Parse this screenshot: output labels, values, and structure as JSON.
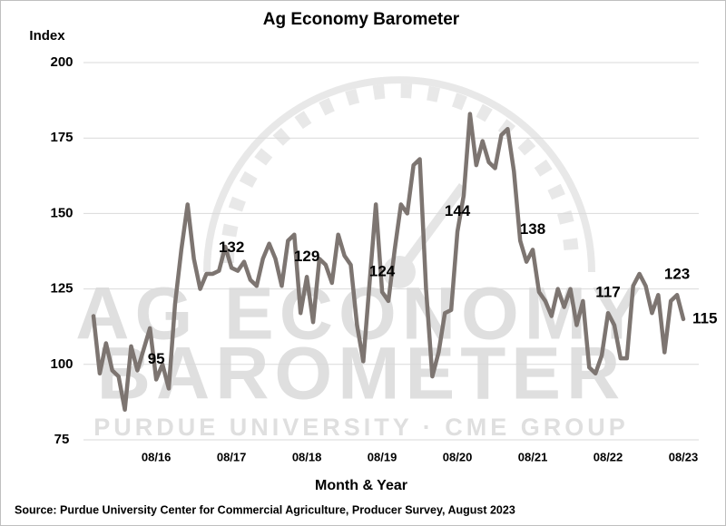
{
  "chart_data": {
    "type": "line",
    "title": "Ag Economy Barometer",
    "y_label": "Index",
    "x_label": "Month & Year",
    "source": "Source: Purdue University Center for Commercial Agriculture, Producer Survey, August 2023",
    "watermark": [
      "AG ECONOMY",
      "BAROMETER",
      "PURDUE UNIVERSITY · CME GROUP"
    ],
    "categories": [
      null,
      null,
      null,
      null,
      null,
      null,
      null,
      null,
      null,
      null,
      "08/16",
      null,
      null,
      null,
      null,
      null,
      null,
      null,
      null,
      null,
      null,
      null,
      "08/17",
      null,
      null,
      null,
      null,
      null,
      null,
      null,
      null,
      null,
      null,
      null,
      "08/18",
      null,
      null,
      null,
      null,
      null,
      null,
      null,
      null,
      null,
      null,
      null,
      "08/19",
      null,
      null,
      null,
      null,
      null,
      null,
      null,
      null,
      null,
      null,
      null,
      "08/20",
      null,
      null,
      null,
      null,
      null,
      null,
      null,
      null,
      null,
      null,
      null,
      "08/21",
      null,
      null,
      null,
      null,
      null,
      null,
      null,
      null,
      null,
      null,
      null,
      "08/22",
      null,
      null,
      null,
      null,
      null,
      null,
      null,
      null,
      null,
      null,
      null,
      "08/23"
    ],
    "series": [
      {
        "name": "Ag Economy Barometer",
        "color": "#7d7571",
        "values": [
          116,
          97,
          107,
          98,
          96,
          85,
          106,
          98,
          105,
          112,
          95,
          100,
          92,
          120,
          138,
          153,
          135,
          125,
          130,
          130,
          131,
          139,
          132,
          131,
          134,
          128,
          126,
          135,
          140,
          135,
          126,
          141,
          143,
          117,
          129,
          114,
          135,
          133,
          127,
          143,
          136,
          133,
          113,
          101,
          127,
          153,
          124,
          121,
          138,
          153,
          150,
          166,
          168,
          125,
          96,
          104,
          117,
          118,
          144,
          156,
          183,
          166,
          174,
          167,
          165,
          176,
          178,
          164,
          141,
          134,
          138,
          124,
          121,
          116,
          125,
          119,
          125,
          113,
          121,
          99,
          97,
          103,
          117,
          113,
          102,
          102,
          126,
          130,
          126,
          117,
          123,
          104,
          121,
          123,
          115
        ],
        "value_labels": [
          null,
          null,
          null,
          null,
          null,
          null,
          null,
          null,
          null,
          null,
          "95",
          null,
          null,
          null,
          null,
          null,
          null,
          null,
          null,
          null,
          null,
          null,
          "132",
          null,
          null,
          null,
          null,
          null,
          null,
          null,
          null,
          null,
          null,
          null,
          "129",
          null,
          null,
          null,
          null,
          null,
          null,
          null,
          null,
          null,
          null,
          null,
          "124",
          null,
          null,
          null,
          null,
          null,
          null,
          null,
          null,
          null,
          null,
          null,
          "144",
          null,
          null,
          null,
          null,
          null,
          null,
          null,
          null,
          null,
          null,
          null,
          "138",
          null,
          null,
          null,
          null,
          null,
          null,
          null,
          null,
          null,
          null,
          null,
          "117",
          null,
          null,
          null,
          null,
          null,
          null,
          null,
          null,
          null,
          null,
          "123",
          "115"
        ]
      }
    ],
    "ylim": [
      75,
      200
    ],
    "yticks": [
      75,
      100,
      125,
      150,
      175,
      200
    ],
    "grid": true
  }
}
